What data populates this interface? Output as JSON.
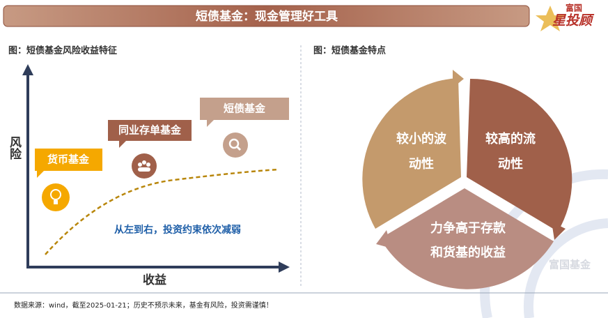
{
  "header": {
    "title": "短债基金：现金管理好工具",
    "logo_top": "富国",
    "logo_main": "星投顾"
  },
  "left_panel": {
    "title": "图：短债基金风险收益特征",
    "y_axis_label": "风险",
    "x_axis_label": "收益",
    "items": [
      {
        "label": "货币基金"
      },
      {
        "label": "同业存单基金"
      },
      {
        "label": "短债基金"
      }
    ],
    "annotation": "从左到右，投资约束依次减弱"
  },
  "right_panel": {
    "title": "图：短债基金特点",
    "segments": [
      {
        "lines": [
          "较小的波",
          "动性"
        ]
      },
      {
        "lines": [
          "较高的流",
          "动性"
        ]
      },
      {
        "lines": [
          "力争高于存款",
          "和货基的收益"
        ]
      }
    ]
  },
  "watermark": "富国基金",
  "footer": "数据来源：wind，截至2025-01-21；历史不预示未来，基金有风险，投资需谨慎！"
}
